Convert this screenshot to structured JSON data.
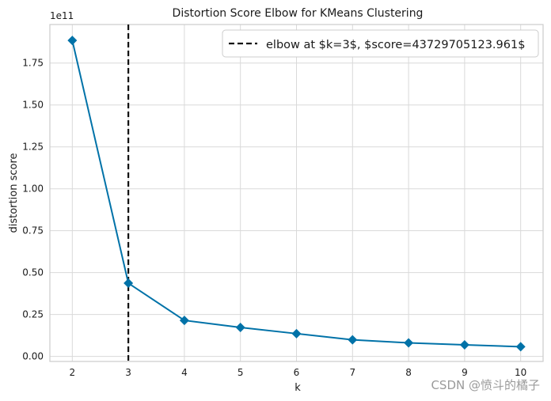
{
  "chart_data": {
    "type": "line",
    "title": "Distortion Score Elbow for KMeans Clustering",
    "xlabel": "k",
    "ylabel": "distortion score",
    "offset_label": "1e11",
    "x": [
      2,
      3,
      4,
      5,
      6,
      7,
      8,
      9,
      10
    ],
    "x_tick_labels": [
      "2",
      "3",
      "4",
      "5",
      "6",
      "7",
      "8",
      "9",
      "10"
    ],
    "y_ticks": [
      0,
      0.25,
      0.5,
      0.75,
      1.0,
      1.25,
      1.5,
      1.75
    ],
    "y_tick_labels": [
      "0.00",
      "0.25",
      "0.50",
      "0.75",
      "1.00",
      "1.25",
      "1.50",
      "1.75"
    ],
    "ylim": [
      -0.03,
      1.98
    ],
    "xlim": [
      1.6,
      10.4
    ],
    "series": [
      {
        "name": "distortion score",
        "values": [
          1.885,
          0.437,
          0.215,
          0.173,
          0.136,
          0.099,
          0.081,
          0.069,
          0.058
        ],
        "color": "#0072a8",
        "marker": "diamond"
      }
    ],
    "elbow": {
      "k": 3,
      "score": 43729705123.961,
      "legend_label": "elbow at $k=3$, $score=43729705123.961$",
      "color": "#111111",
      "style": "dashed"
    },
    "legend_position": "top-right",
    "grid": true
  },
  "watermark": "CSDN @愤斗的橘子"
}
